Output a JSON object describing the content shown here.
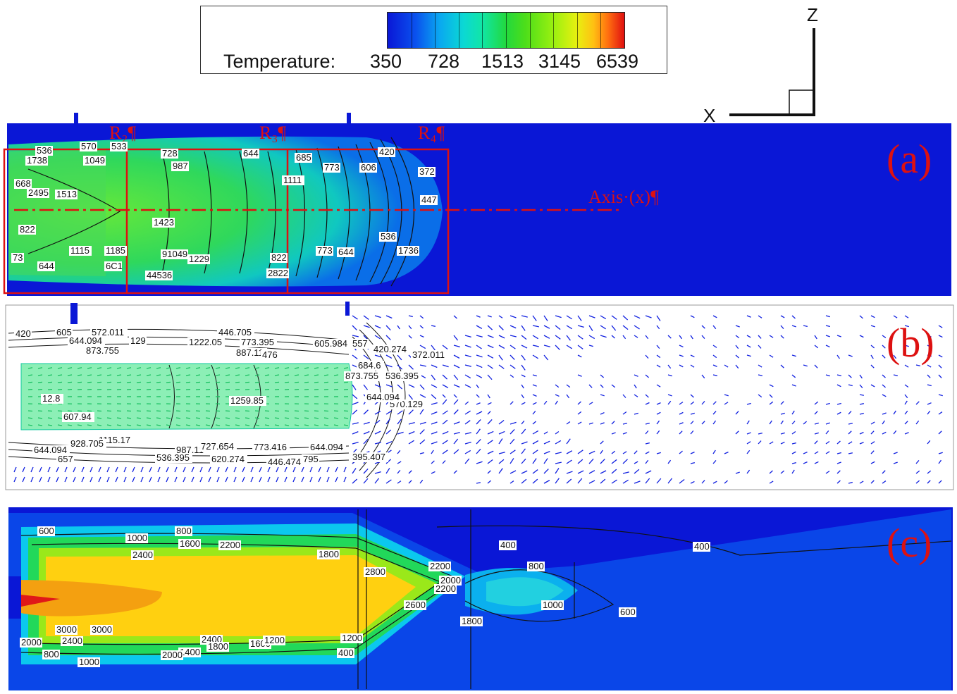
{
  "legend": {
    "label": "Temperature:",
    "ticks": [
      "350",
      "728",
      "1513",
      "3145",
      "6539"
    ]
  },
  "axes": {
    "z": "Z",
    "x": "X"
  },
  "panel_a": {
    "mark": "(a)",
    "regions": [
      "R₂¶",
      "R₃¶",
      "R₄¶"
    ],
    "axis_label": "Axis·(x)¶",
    "contour_labels": [
      "536",
      "1738",
      "570",
      "533",
      "728",
      "644",
      "1049",
      "987",
      "685",
      "773",
      "606",
      "420",
      "372",
      "668",
      "2495",
      "1513",
      "822",
      "447",
      "1423",
      "1115",
      "1185",
      "91049",
      "1229",
      "822",
      "773",
      "644",
      "536",
      "1736",
      "73",
      "644",
      "6C1",
      "44536",
      "2822",
      "1111"
    ]
  },
  "panel_b": {
    "mark": "(b)",
    "contour_labels": [
      "420",
      "605",
      "572.011",
      "644.094",
      "129",
      "873.755",
      "446.705",
      "1222.05",
      "773.395",
      "605.984",
      "557",
      "420.274",
      "372.011",
      "887.11",
      "476",
      "12.8",
      "607.94",
      "1259.85",
      "684.6",
      "873.755",
      "536.395",
      "570.129",
      "644.094",
      "1115.17",
      "928.705",
      "987.11",
      "727.654",
      "773.416",
      "644.094",
      "395.407",
      "644.094",
      "657",
      "536.395",
      "620.274",
      "446.474",
      "795"
    ]
  },
  "panel_c": {
    "mark": "(c)",
    "contour_labels": [
      "600",
      "1000",
      "800",
      "1600",
      "2200",
      "2400",
      "1800",
      "2200",
      "400",
      "400",
      "800",
      "2800",
      "2000",
      "2200",
      "2600",
      "1000",
      "1800",
      "600",
      "3000",
      "3000",
      "2000",
      "2400",
      "2400",
      "1600",
      "1800",
      "1400",
      "1200",
      "800",
      "1000",
      "2000",
      "1200",
      "400"
    ]
  }
}
